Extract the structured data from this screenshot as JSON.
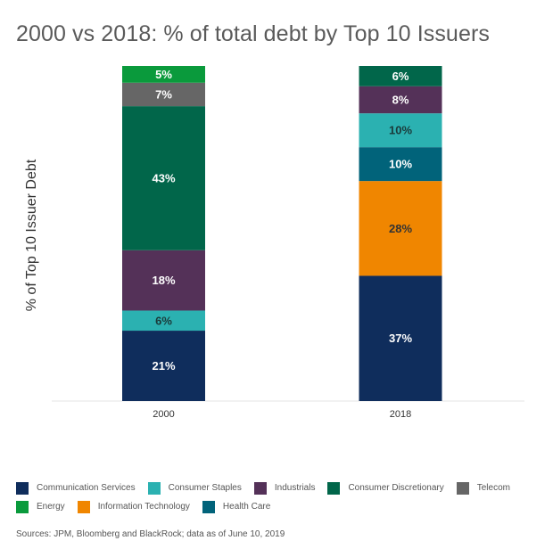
{
  "chart_data": {
    "type": "bar",
    "stacked": true,
    "title": "2000 vs 2018: % of total debt by Top 10 Issuers",
    "xlabel": "",
    "ylabel": "% of Top 10 Issuer Debt",
    "ylim": [
      0,
      100
    ],
    "grid": false,
    "legend_position": "bottom",
    "categories": [
      "2000",
      "2018"
    ],
    "series": [
      {
        "name": "Communication Services",
        "color": "#0f2d5c",
        "label_color": "#ffffff",
        "values": [
          21,
          37
        ]
      },
      {
        "name": "Consumer Staples",
        "color": "#2bb1b1",
        "label_color": "#1a3a3a",
        "values": [
          6,
          10
        ]
      },
      {
        "name": "Industrials",
        "color": "#543158",
        "label_color": "#ffffff",
        "values": [
          18,
          8
        ]
      },
      {
        "name": "Consumer Discretionary",
        "color": "#01664a",
        "label_color": "#ffffff",
        "values": [
          43,
          6
        ]
      },
      {
        "name": "Telecom",
        "color": "#666666",
        "label_color": "#ffffff",
        "values": [
          7,
          0
        ]
      },
      {
        "name": "Energy",
        "color": "#0a9a3c",
        "label_color": "#ffffff",
        "values": [
          5,
          0
        ]
      },
      {
        "name": "Information Technology",
        "color": "#f08600",
        "label_color": "#333333",
        "values": [
          0,
          28
        ]
      },
      {
        "name": "Health Care",
        "color": "#01637a",
        "label_color": "#ffffff",
        "values": [
          0,
          10
        ]
      }
    ],
    "stack_order": {
      "2000": [
        "Communication Services",
        "Consumer Staples",
        "Industrials",
        "Consumer Discretionary",
        "Telecom",
        "Energy"
      ],
      "2018": [
        "Communication Services",
        "Information Technology",
        "Health Care",
        "Consumer Staples",
        "Industrials",
        "Consumer Discretionary"
      ]
    }
  },
  "legend_rows": [
    [
      "Communication Services",
      "Consumer Staples",
      "Industrials",
      "Consumer Discretionary",
      "Telecom"
    ],
    [
      "Energy",
      "Information Technology",
      "Health Care"
    ]
  ],
  "source": "Sources: JPM, Bloomberg and BlackRock; data as of June 10, 2019"
}
